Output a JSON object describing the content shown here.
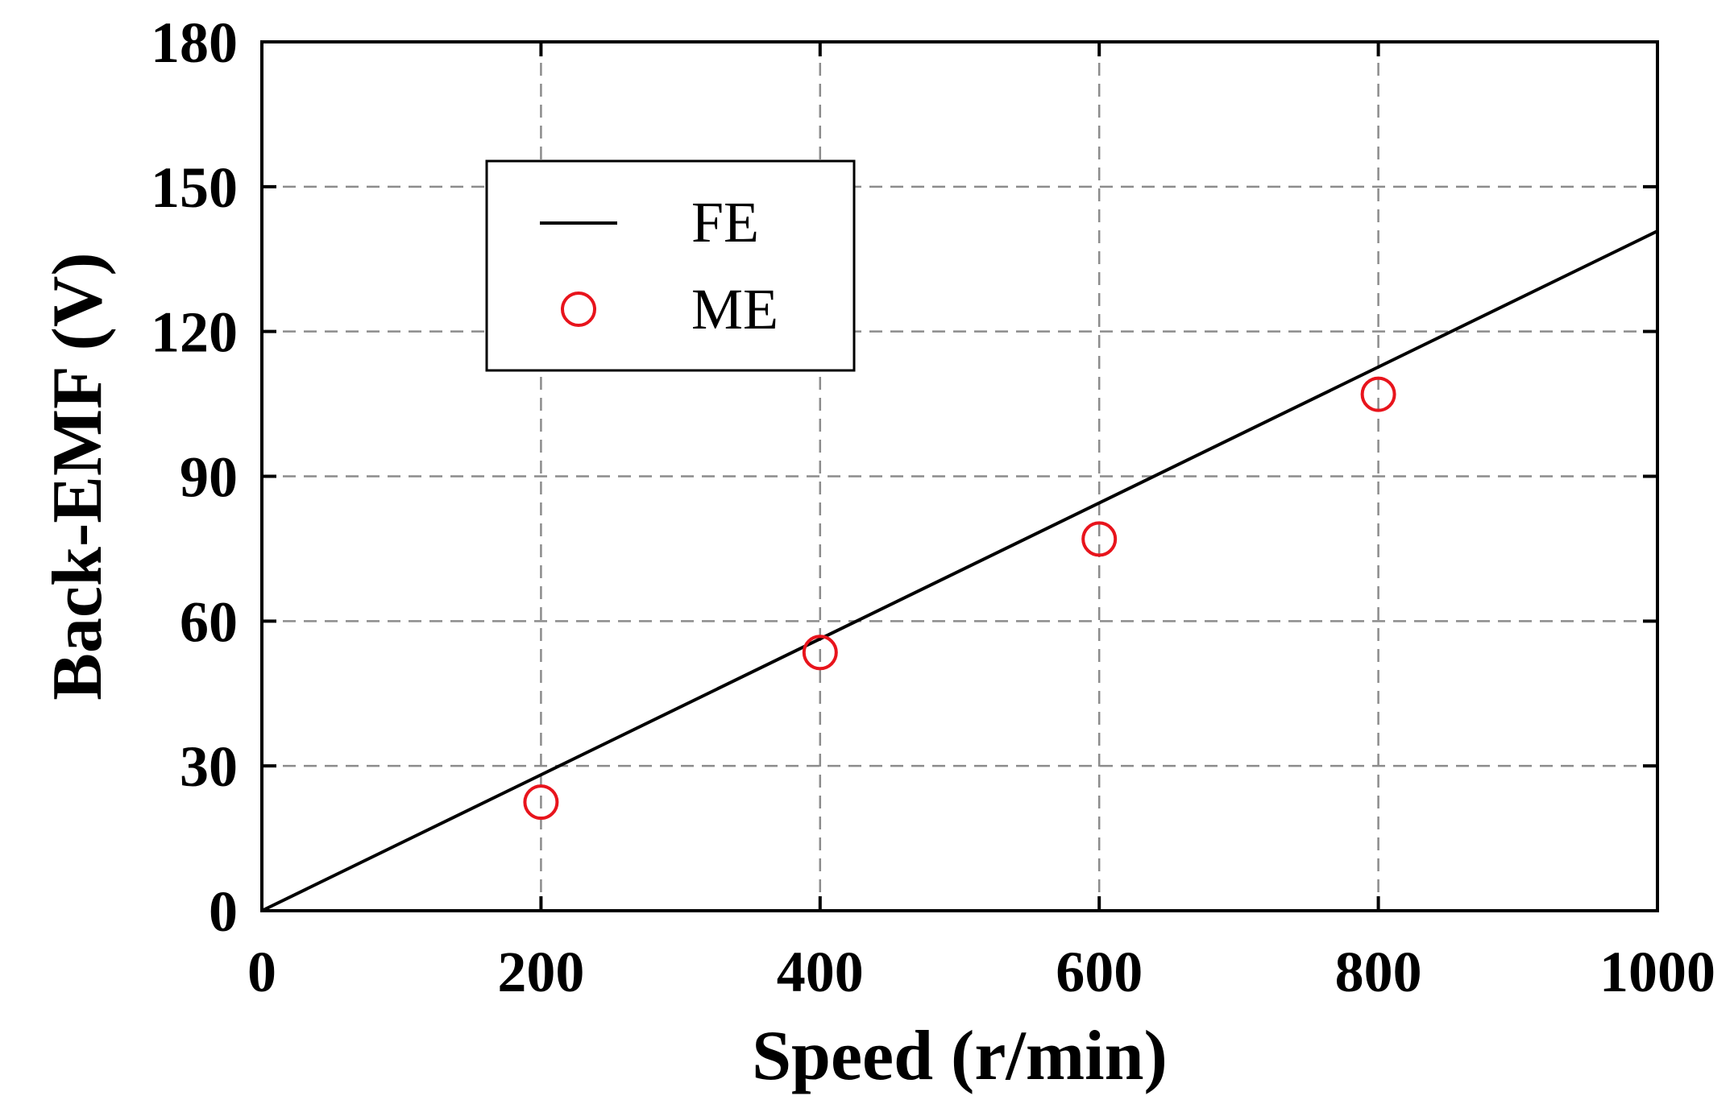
{
  "chart_data": {
    "type": "line",
    "title": "",
    "xlabel": "Speed (r/min)",
    "ylabel": "Back-EMF (V)",
    "xlim": [
      0,
      1000
    ],
    "ylim": [
      0,
      180
    ],
    "xticks": [
      0,
      200,
      400,
      600,
      800,
      1000
    ],
    "yticks": [
      0,
      30,
      60,
      90,
      120,
      150,
      180
    ],
    "xtick_labels": [
      "0",
      "200",
      "400",
      "600",
      "800",
      "1000"
    ],
    "ytick_labels": [
      "0",
      "30",
      "60",
      "90",
      "120",
      "150",
      "180"
    ],
    "grid": true,
    "legend_position": "upper-left",
    "series": [
      {
        "name": "FE",
        "style": "line",
        "color": "#000000",
        "x": [
          0,
          1000
        ],
        "y": [
          0,
          140.8
        ]
      },
      {
        "name": "ME",
        "style": "markers",
        "marker": "open-circle",
        "color": "#e8141c",
        "x": [
          200,
          400,
          600,
          800
        ],
        "y": [
          22.5,
          53.5,
          77.0,
          107.0
        ]
      }
    ]
  }
}
